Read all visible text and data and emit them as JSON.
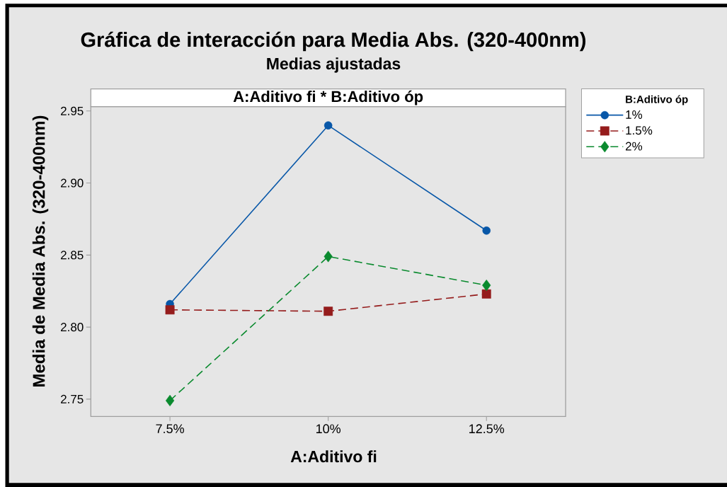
{
  "chart_data": {
    "type": "line",
    "title": "Gráfica de interacción para Media Abs. (320-400nm)",
    "subtitle": "Medias ajustadas",
    "xlabel": "A:Aditivo fi",
    "ylabel": "Media de Media Abs. (320-400nm)",
    "legend_title": "B:Aditivo óp",
    "annotations": [
      "A:Aditivo fi * B:Aditivo óp"
    ],
    "categories": [
      "7.5%",
      "10%",
      "12.5%"
    ],
    "series": [
      {
        "name": "1%",
        "color": "#0857a8",
        "values": [
          2.816,
          2.94,
          2.867
        ],
        "marker": "circle",
        "line_style": "solid"
      },
      {
        "name": "1.5%",
        "color": "#951c1c",
        "values": [
          2.812,
          2.811,
          2.823
        ],
        "marker": "square",
        "line_style": "dashed"
      },
      {
        "name": "2%",
        "color": "#0a8a2e",
        "values": [
          2.749,
          2.849,
          2.829
        ],
        "marker": "diamond",
        "line_style": "dashed"
      }
    ],
    "ylim": [
      2.738,
      2.953
    ],
    "yticks": [
      2.75,
      {
        "value": 2.8,
        "label": "2.80"
      },
      2.85,
      {
        "value": 2.9,
        "label": "2.90"
      },
      2.95
    ],
    "legend": "right"
  }
}
